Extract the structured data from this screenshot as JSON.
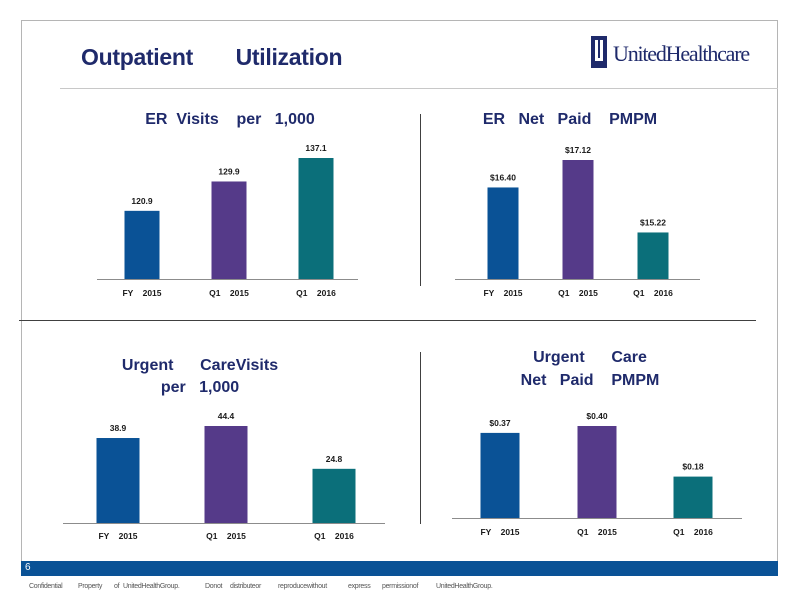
{
  "slide": {
    "title": "Outpatient       Utilization",
    "page_number": "6"
  },
  "logo": {
    "text": "UnitedHealthcare"
  },
  "footer": {
    "words": [
      "Confidential",
      "Property",
      "of",
      "UnitedHealthGroup.",
      "Donot",
      "distributeor",
      "reproducewithout",
      "express",
      "permissionof",
      "UnitedHealthGroup."
    ]
  },
  "colors": {
    "fy2015": "#0a5296",
    "q12015": "#553a89",
    "q12016": "#0b6f7a",
    "title": "#1f2a6b"
  },
  "chart_data": [
    {
      "type": "bar",
      "title": "ER  Visits    per   1,000",
      "categories": [
        "FY    2015",
        "Q1    2015",
        "Q1    2016"
      ],
      "values": [
        120.9,
        129.9,
        137.1
      ],
      "value_labels": [
        "120.9",
        "129.9",
        "137.1"
      ],
      "colors": [
        "#0a5296",
        "#553a89",
        "#0b6f7a"
      ],
      "ylim": [
        100,
        140
      ],
      "grid": false
    },
    {
      "type": "bar",
      "title": "ER   Net   Paid    PMPM",
      "categories": [
        "FY    2015",
        "Q1    2015",
        "Q1    2016"
      ],
      "values": [
        16.4,
        17.12,
        15.22
      ],
      "value_labels": [
        "$16.40",
        "$17.12",
        "$15.22"
      ],
      "colors": [
        "#0a5296",
        "#553a89",
        "#0b6f7a"
      ],
      "ylim": [
        14,
        17.5
      ],
      "grid": false
    },
    {
      "type": "bar",
      "title": "Urgent      CareVisits\nper   1,000",
      "categories": [
        "FY    2015",
        "Q1    2015",
        "Q1    2016"
      ],
      "values": [
        38.9,
        44.4,
        24.8
      ],
      "value_labels": [
        "38.9",
        "44.4",
        "24.8"
      ],
      "colors": [
        "#0a5296",
        "#553a89",
        "#0b6f7a"
      ],
      "ylim": [
        0,
        45
      ],
      "grid": false
    },
    {
      "type": "bar",
      "title": "Urgent      Care\nNet   Paid    PMPM",
      "categories": [
        "FY    2015",
        "Q1    2015",
        "Q1    2016"
      ],
      "values": [
        0.37,
        0.4,
        0.18
      ],
      "value_labels": [
        "$0.37",
        "$0.40",
        "$0.18"
      ],
      "colors": [
        "#0a5296",
        "#553a89",
        "#0b6f7a"
      ],
      "ylim": [
        0,
        0.42
      ],
      "grid": false
    }
  ]
}
